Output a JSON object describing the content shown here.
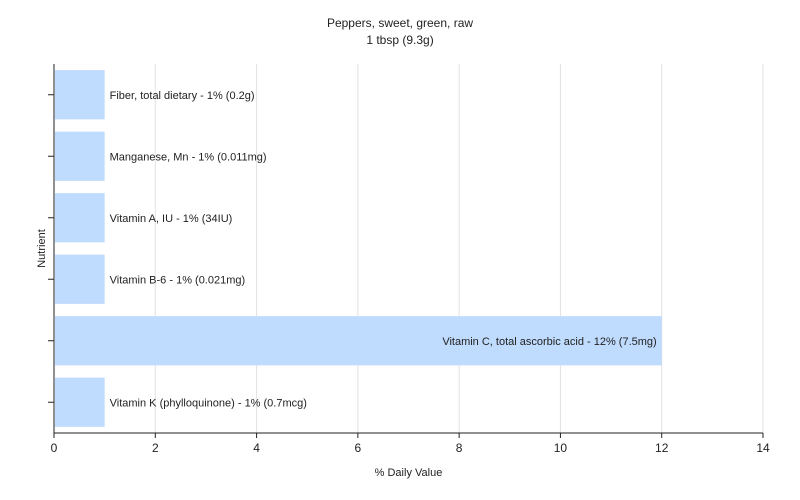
{
  "chart_data": {
    "type": "bar",
    "orientation": "horizontal",
    "title": "Peppers, sweet, green, raw",
    "subtitle": "1 tbsp (9.3g)",
    "xlabel": "% Daily Value",
    "ylabel": "Nutrient",
    "xlim": [
      0,
      14
    ],
    "xticks": [
      0,
      2,
      4,
      6,
      8,
      10,
      12,
      14
    ],
    "grid": true,
    "bar_color": "#bfdbfd",
    "categories": [
      "Fiber, total dietary",
      "Manganese, Mn",
      "Vitamin A, IU",
      "Vitamin B-6",
      "Vitamin C, total ascorbic acid",
      "Vitamin K (phylloquinone)"
    ],
    "values": [
      1,
      1,
      1,
      1,
      12,
      1
    ],
    "data_labels": [
      "Fiber, total dietary - 1% (0.2g)",
      "Manganese, Mn - 1% (0.011mg)",
      "Vitamin A, IU - 1% (34IU)",
      "Vitamin B-6 - 1% (0.021mg)",
      "Vitamin C, total ascorbic acid - 12% (7.5mg)",
      "Vitamin K (phylloquinone) - 1% (0.7mcg)"
    ]
  }
}
